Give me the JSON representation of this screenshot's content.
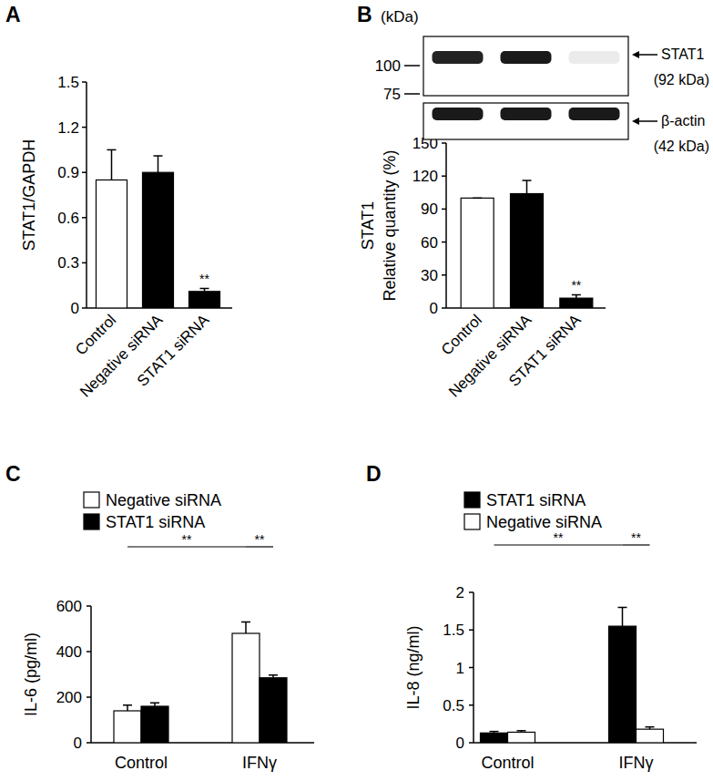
{
  "chart_data": [
    {
      "type": "bar",
      "title": "A",
      "categories": [
        "Control",
        "Negative siRNA",
        "STAT1 siRNA"
      ],
      "values": [
        0.85,
        0.9,
        0.11
      ],
      "errors": [
        0.2,
        0.11,
        0.02
      ],
      "colors": [
        "#ffffff",
        "#000000",
        "#000000"
      ],
      "ylabel": "STAT1/GAPDH",
      "ylim": [
        0,
        1.5
      ],
      "yticks": [
        0,
        0.3,
        0.6,
        0.9,
        1.2,
        1.5
      ],
      "annotations": [
        "**"
      ]
    },
    {
      "type": "bar",
      "title": "B",
      "categories": [
        "Control",
        "Negative siRNA",
        "STAT1 siRNA"
      ],
      "values": [
        100,
        104,
        9
      ],
      "errors": [
        0,
        12,
        3
      ],
      "colors": [
        "#ffffff",
        "#000000",
        "#000000"
      ],
      "ylabel": [
        "STAT1",
        "Relative quantity (%)"
      ],
      "ylim": [
        0,
        150
      ],
      "yticks": [
        0,
        30,
        60,
        90,
        120,
        150
      ],
      "annotations": [
        "**"
      ],
      "blot": {
        "unit": "(kDa)",
        "markers": [
          100,
          75
        ],
        "bands": [
          {
            "name": "STAT1",
            "size": "(92 kDa)"
          },
          {
            "name": "β-actin",
            "size": "(42 kDa)"
          }
        ]
      }
    },
    {
      "type": "bar",
      "title": "C",
      "categories": [
        "Control",
        "IFNγ"
      ],
      "series": [
        {
          "name": "Negative siRNA",
          "color": "#ffffff",
          "values": [
            140,
            480
          ],
          "errors": [
            25,
            50
          ]
        },
        {
          "name": "STAT1 siRNA",
          "color": "#000000",
          "values": [
            160,
            285
          ],
          "errors": [
            15,
            12
          ]
        }
      ],
      "ylabel": "IL-6 (pg/ml)",
      "ylim": [
        0,
        600
      ],
      "yticks": [
        0,
        200,
        400,
        600
      ],
      "legend": "top-left",
      "annotations": [
        "**",
        "**"
      ]
    },
    {
      "type": "bar",
      "title": "D",
      "categories": [
        "Control",
        "IFNγ"
      ],
      "series": [
        {
          "name": "STAT1 siRNA",
          "color": "#000000",
          "values": [
            0.13,
            1.55
          ],
          "errors": [
            0.02,
            0.25
          ]
        },
        {
          "name": "Negative siRNA",
          "color": "#ffffff",
          "values": [
            0.14,
            0.18
          ],
          "errors": [
            0.02,
            0.03
          ]
        }
      ],
      "ylabel": "IL-8 (ng/ml)",
      "ylim": [
        0,
        2
      ],
      "yticks": [
        0,
        0.5,
        1,
        1.5,
        2
      ],
      "legend": "top-left",
      "annotations": [
        "**",
        "**"
      ]
    }
  ]
}
